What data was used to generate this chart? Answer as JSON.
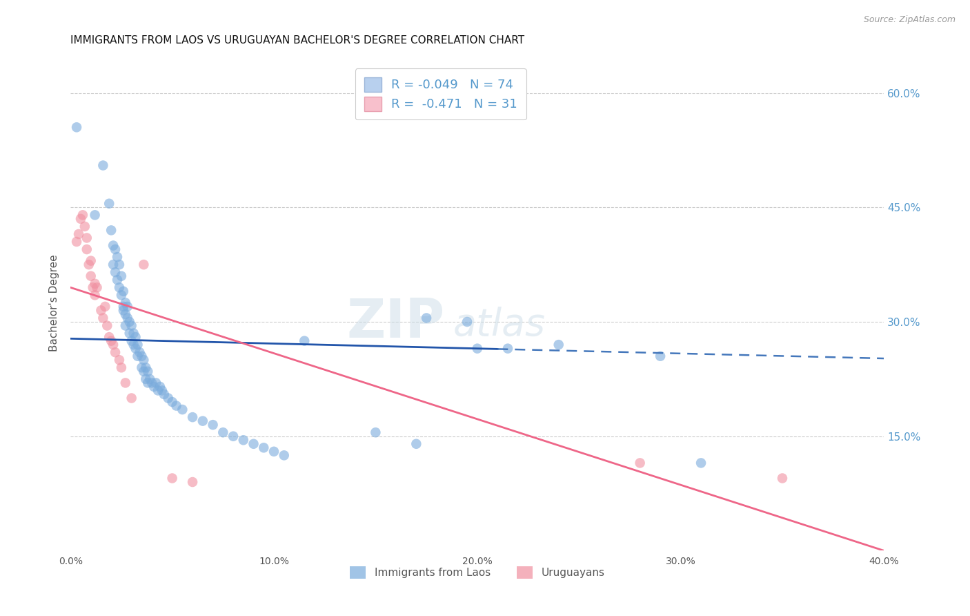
{
  "title": "IMMIGRANTS FROM LAOS VS URUGUAYAN BACHELOR'S DEGREE CORRELATION CHART",
  "source": "Source: ZipAtlas.com",
  "ylabel": "Bachelor's Degree",
  "xlim": [
    0.0,
    0.4
  ],
  "ylim": [
    0.0,
    0.65
  ],
  "xticklabels": [
    "0.0%",
    "10.0%",
    "20.0%",
    "30.0%",
    "40.0%"
  ],
  "xtick_vals": [
    0.0,
    0.1,
    0.2,
    0.3,
    0.4
  ],
  "ytick_right_vals": [
    0.15,
    0.3,
    0.45,
    0.6
  ],
  "ytick_right_labels": [
    "15.0%",
    "30.0%",
    "45.0%",
    "60.0%"
  ],
  "legend_line1": "R = -0.049   N = 74",
  "legend_line2": "R =  -0.471   N = 31",
  "blue_color": "#7aabdc",
  "pink_color": "#f090a0",
  "blue_fill": "#b8d0ee",
  "pink_fill": "#f8c0cc",
  "blue_scatter": [
    [
      0.003,
      0.555
    ],
    [
      0.012,
      0.44
    ],
    [
      0.016,
      0.505
    ],
    [
      0.019,
      0.455
    ],
    [
      0.02,
      0.42
    ],
    [
      0.021,
      0.4
    ],
    [
      0.021,
      0.375
    ],
    [
      0.022,
      0.395
    ],
    [
      0.022,
      0.365
    ],
    [
      0.023,
      0.385
    ],
    [
      0.023,
      0.355
    ],
    [
      0.024,
      0.345
    ],
    [
      0.024,
      0.375
    ],
    [
      0.025,
      0.36
    ],
    [
      0.025,
      0.335
    ],
    [
      0.026,
      0.32
    ],
    [
      0.026,
      0.34
    ],
    [
      0.026,
      0.315
    ],
    [
      0.027,
      0.325
    ],
    [
      0.027,
      0.31
    ],
    [
      0.027,
      0.295
    ],
    [
      0.028,
      0.305
    ],
    [
      0.028,
      0.32
    ],
    [
      0.029,
      0.3
    ],
    [
      0.029,
      0.285
    ],
    [
      0.03,
      0.295
    ],
    [
      0.03,
      0.275
    ],
    [
      0.031,
      0.285
    ],
    [
      0.031,
      0.27
    ],
    [
      0.032,
      0.28
    ],
    [
      0.032,
      0.265
    ],
    [
      0.033,
      0.27
    ],
    [
      0.033,
      0.255
    ],
    [
      0.034,
      0.26
    ],
    [
      0.035,
      0.255
    ],
    [
      0.035,
      0.24
    ],
    [
      0.036,
      0.25
    ],
    [
      0.036,
      0.235
    ],
    [
      0.037,
      0.24
    ],
    [
      0.037,
      0.225
    ],
    [
      0.038,
      0.235
    ],
    [
      0.038,
      0.22
    ],
    [
      0.039,
      0.225
    ],
    [
      0.04,
      0.22
    ],
    [
      0.041,
      0.215
    ],
    [
      0.042,
      0.22
    ],
    [
      0.043,
      0.21
    ],
    [
      0.044,
      0.215
    ],
    [
      0.045,
      0.21
    ],
    [
      0.046,
      0.205
    ],
    [
      0.048,
      0.2
    ],
    [
      0.05,
      0.195
    ],
    [
      0.052,
      0.19
    ],
    [
      0.055,
      0.185
    ],
    [
      0.06,
      0.175
    ],
    [
      0.065,
      0.17
    ],
    [
      0.07,
      0.165
    ],
    [
      0.075,
      0.155
    ],
    [
      0.08,
      0.15
    ],
    [
      0.085,
      0.145
    ],
    [
      0.09,
      0.14
    ],
    [
      0.095,
      0.135
    ],
    [
      0.1,
      0.13
    ],
    [
      0.105,
      0.125
    ],
    [
      0.115,
      0.275
    ],
    [
      0.15,
      0.155
    ],
    [
      0.17,
      0.14
    ],
    [
      0.175,
      0.305
    ],
    [
      0.195,
      0.3
    ],
    [
      0.2,
      0.265
    ],
    [
      0.215,
      0.265
    ],
    [
      0.24,
      0.27
    ],
    [
      0.29,
      0.255
    ],
    [
      0.31,
      0.115
    ]
  ],
  "pink_scatter": [
    [
      0.003,
      0.405
    ],
    [
      0.004,
      0.415
    ],
    [
      0.005,
      0.435
    ],
    [
      0.006,
      0.44
    ],
    [
      0.007,
      0.425
    ],
    [
      0.008,
      0.41
    ],
    [
      0.008,
      0.395
    ],
    [
      0.009,
      0.375
    ],
    [
      0.01,
      0.36
    ],
    [
      0.01,
      0.38
    ],
    [
      0.011,
      0.345
    ],
    [
      0.012,
      0.335
    ],
    [
      0.012,
      0.35
    ],
    [
      0.013,
      0.345
    ],
    [
      0.015,
      0.315
    ],
    [
      0.016,
      0.305
    ],
    [
      0.017,
      0.32
    ],
    [
      0.018,
      0.295
    ],
    [
      0.019,
      0.28
    ],
    [
      0.02,
      0.275
    ],
    [
      0.021,
      0.27
    ],
    [
      0.022,
      0.26
    ],
    [
      0.024,
      0.25
    ],
    [
      0.025,
      0.24
    ],
    [
      0.027,
      0.22
    ],
    [
      0.03,
      0.2
    ],
    [
      0.036,
      0.375
    ],
    [
      0.05,
      0.095
    ],
    [
      0.06,
      0.09
    ],
    [
      0.28,
      0.115
    ],
    [
      0.35,
      0.095
    ]
  ],
  "blue_line_x0": 0.0,
  "blue_line_x1": 0.4,
  "blue_line_y0": 0.278,
  "blue_line_y1": 0.252,
  "blue_line_solid_end_x": 0.21,
  "pink_line_x0": 0.0,
  "pink_line_x1": 0.4,
  "pink_line_y0": 0.345,
  "pink_line_y1": 0.0,
  "watermark_zip": "ZIP",
  "watermark_atlas": "atlas",
  "background_color": "#ffffff",
  "grid_color": "#cccccc",
  "title_fontsize": 11,
  "label_fontsize": 11,
  "tick_fontsize": 10,
  "right_tick_color": "#5599cc",
  "legend_color": "#5599cc"
}
